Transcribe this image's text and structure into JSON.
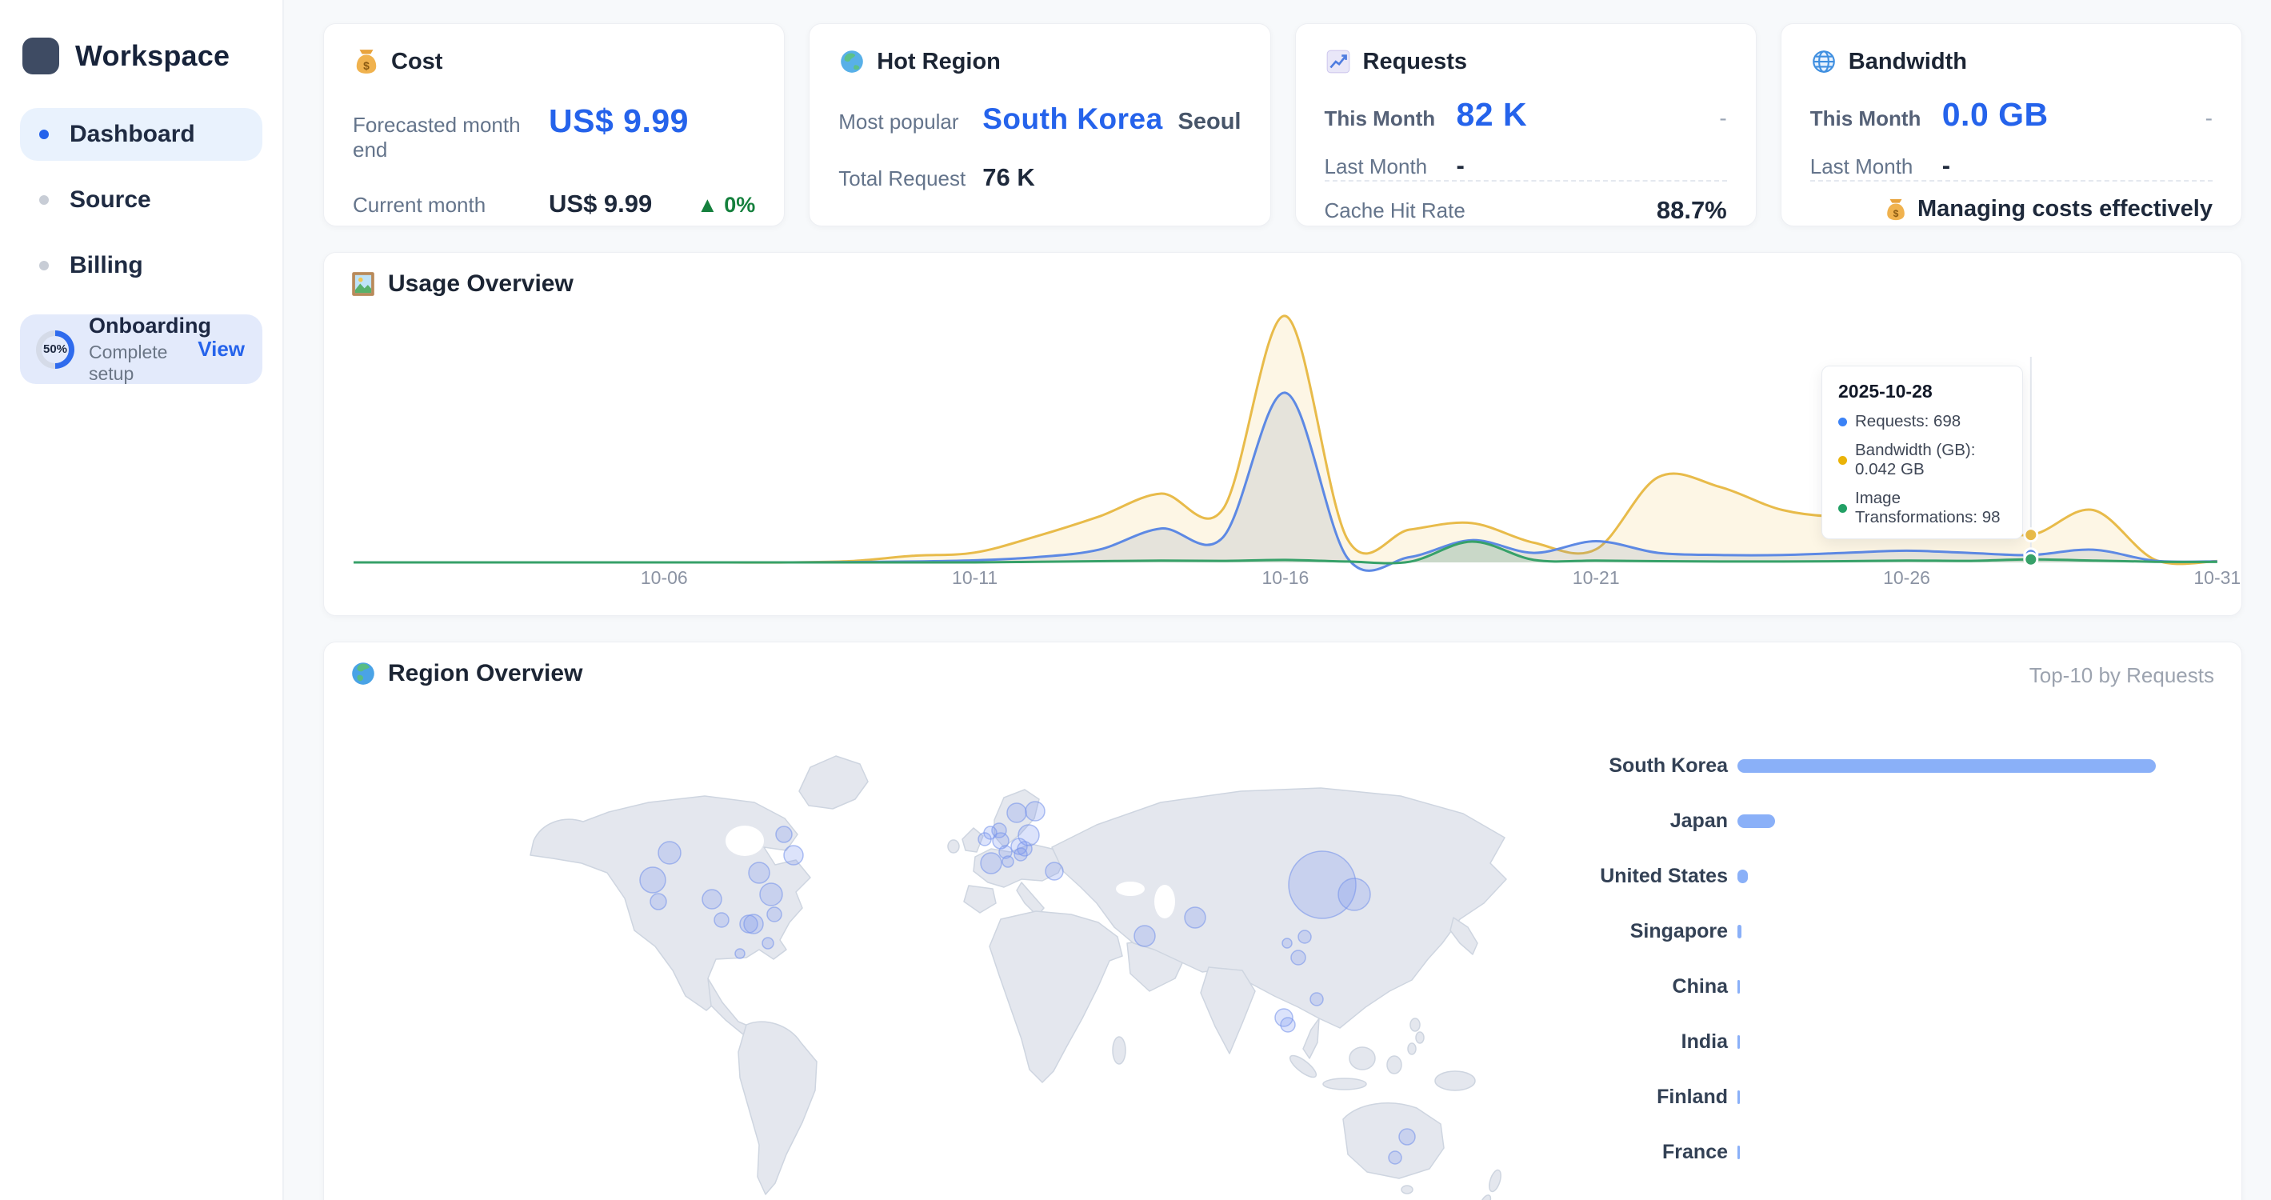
{
  "app": {
    "workspace_label": "Workspace"
  },
  "colors": {
    "accent": "#2563eb",
    "bar_blue": "#8ab0f8",
    "green_delta": "#15803d",
    "series_requests": "#5d89e4",
    "series_bandwidth": "#e8bb4a",
    "series_transformations": "#37a169"
  },
  "sidebar": {
    "items": [
      {
        "label": "Dashboard",
        "active": true
      },
      {
        "label": "Source",
        "active": false
      },
      {
        "label": "Billing",
        "active": false
      }
    ],
    "onboarding": {
      "progress": "50%",
      "title": "Onboarding",
      "subtitle": "Complete setup",
      "action": "View"
    }
  },
  "cards": {
    "cost": {
      "icon": "money-bag-icon",
      "title": "Cost",
      "row1_label": "Forecasted month end",
      "row1_value": "US$ 9.99",
      "row2_label": "Current month",
      "row2_value": "US$ 9.99",
      "row2_delta": "▲ 0%"
    },
    "hot_region": {
      "icon": "globe-asia-icon",
      "title": "Hot Region",
      "row1_label": "Most popular",
      "row1_value": "South Korea",
      "row1_extra": "Seoul",
      "row2_label": "Total Request",
      "row2_value": "76 K"
    },
    "requests": {
      "icon": "chart-increasing-icon",
      "title": "Requests",
      "row1_label": "This Month",
      "row1_value": "82 K",
      "row1_extra": "-",
      "row2_label": "Last Month",
      "row2_value": "-",
      "footer_label": "Cache Hit Rate",
      "footer_value": "88.7%"
    },
    "bandwidth": {
      "icon": "globe-meridians-icon",
      "title": "Bandwidth",
      "row1_label": "This Month",
      "row1_value": "0.0 GB",
      "row1_extra": "-",
      "row2_label": "Last Month",
      "row2_value": "-",
      "footer_icon": "money-bag-icon",
      "footer_note": "Managing costs effectively"
    }
  },
  "usage": {
    "icon": "framed-picture-icon",
    "title": "Usage Overview",
    "tooltip": {
      "title": "2025-10-28",
      "items": [
        {
          "color": "#3b82f6",
          "text": "Requests: 698"
        },
        {
          "color": "#eab308",
          "text": "Bandwidth (GB): 0.042 GB"
        },
        {
          "color": "#22a065",
          "text": "Image Transformations: 98"
        }
      ]
    }
  },
  "region": {
    "icon": "globe-europe-icon",
    "title": "Region Overview",
    "subtitle": "Top-10 by Requests",
    "map_bubbles": [
      {
        "x": 432,
        "y": 263,
        "r": 14
      },
      {
        "x": 411,
        "y": 297,
        "r": 16
      },
      {
        "x": 418,
        "y": 324,
        "r": 10
      },
      {
        "x": 485,
        "y": 321,
        "r": 12
      },
      {
        "x": 497,
        "y": 347,
        "r": 9
      },
      {
        "x": 531,
        "y": 352,
        "r": 11
      },
      {
        "x": 544,
        "y": 288,
        "r": 13
      },
      {
        "x": 575,
        "y": 240,
        "r": 10
      },
      {
        "x": 587,
        "y": 266,
        "r": 12
      },
      {
        "x": 559,
        "y": 315,
        "r": 14
      },
      {
        "x": 563,
        "y": 340,
        "r": 9
      },
      {
        "x": 537,
        "y": 352,
        "r": 12
      },
      {
        "x": 555,
        "y": 376,
        "r": 7
      },
      {
        "x": 520,
        "y": 389,
        "r": 6
      },
      {
        "x": 866,
        "y": 213,
        "r": 12
      },
      {
        "x": 889,
        "y": 211,
        "r": 12
      },
      {
        "x": 833,
        "y": 238,
        "r": 8
      },
      {
        "x": 844,
        "y": 235,
        "r": 9
      },
      {
        "x": 826,
        "y": 246,
        "r": 8
      },
      {
        "x": 846,
        "y": 248,
        "r": 10
      },
      {
        "x": 881,
        "y": 241,
        "r": 13
      },
      {
        "x": 869,
        "y": 255,
        "r": 10
      },
      {
        "x": 876,
        "y": 258,
        "r": 9
      },
      {
        "x": 871,
        "y": 265,
        "r": 8
      },
      {
        "x": 834,
        "y": 276,
        "r": 13
      },
      {
        "x": 852,
        "y": 262,
        "r": 8
      },
      {
        "x": 855,
        "y": 274,
        "r": 7
      },
      {
        "x": 913,
        "y": 286,
        "r": 11
      },
      {
        "x": 1026,
        "y": 367,
        "r": 13
      },
      {
        "x": 1089,
        "y": 344,
        "r": 13
      },
      {
        "x": 1248,
        "y": 303,
        "r": 42
      },
      {
        "x": 1288,
        "y": 315,
        "r": 20
      },
      {
        "x": 1226,
        "y": 368,
        "r": 8
      },
      {
        "x": 1204,
        "y": 376,
        "r": 6
      },
      {
        "x": 1218,
        "y": 394,
        "r": 9
      },
      {
        "x": 1241,
        "y": 446,
        "r": 8
      },
      {
        "x": 1200,
        "y": 469,
        "r": 11
      },
      {
        "x": 1205,
        "y": 478,
        "r": 9
      },
      {
        "x": 1354,
        "y": 618,
        "r": 10
      },
      {
        "x": 1339,
        "y": 644,
        "r": 8
      }
    ]
  },
  "chart_data": [
    {
      "type": "area",
      "title": "Usage Overview",
      "x_start": "2025-10-01",
      "x_end": "2025-10-31",
      "x_tick_labels": [
        "10-06",
        "10-11",
        "10-16",
        "10-21",
        "10-26",
        "10-31"
      ],
      "x_tick_day_index": [
        5,
        10,
        15,
        20,
        25,
        30
      ],
      "grid": false,
      "legend": false,
      "highlight": {
        "date": "2025-10-28",
        "day_index": 27,
        "requests": 698,
        "bandwidth_gb": 0.042,
        "image_transformations": 98
      },
      "series": [
        {
          "name": "Bandwidth (GB)",
          "color": "#e8bb4a",
          "values": [
            0,
            0,
            0,
            0,
            0,
            0,
            0,
            0,
            0.002,
            0.01,
            0.015,
            0.04,
            0.07,
            0.105,
            0.082,
            0.376,
            0.035,
            0.05,
            0.06,
            0.03,
            0.02,
            0.13,
            0.115,
            0.08,
            0.07,
            0.08,
            0.06,
            0.042,
            0.08,
            0.004,
            0.002
          ]
        },
        {
          "name": "Requests",
          "color": "#5d89e4",
          "values": [
            0,
            0,
            0,
            0,
            0,
            0,
            0,
            0,
            30,
            80,
            200,
            500,
            1200,
            3200,
            2400,
            16000,
            400,
            500,
            2100,
            900,
            2000,
            900,
            700,
            700,
            900,
            1100,
            900,
            698,
            1200,
            150,
            100
          ]
        },
        {
          "name": "Image Transformations",
          "color": "#37a169",
          "values": [
            0,
            0,
            0,
            0,
            0,
            0,
            0,
            0,
            0,
            0,
            0,
            20,
            40,
            60,
            50,
            80,
            30,
            20,
            680,
            80,
            60,
            40,
            30,
            30,
            40,
            60,
            50,
            98,
            60,
            20,
            15
          ]
        }
      ]
    },
    {
      "type": "bar",
      "orientation": "horizontal",
      "title": "Top-10 by Requests",
      "categories": [
        "South Korea",
        "Japan",
        "United States",
        "Singapore",
        "China",
        "India",
        "Finland",
        "France"
      ],
      "bar_length_pct": [
        100,
        9,
        2.5,
        1,
        0.5,
        0.5,
        0.5,
        0.5
      ]
    }
  ]
}
